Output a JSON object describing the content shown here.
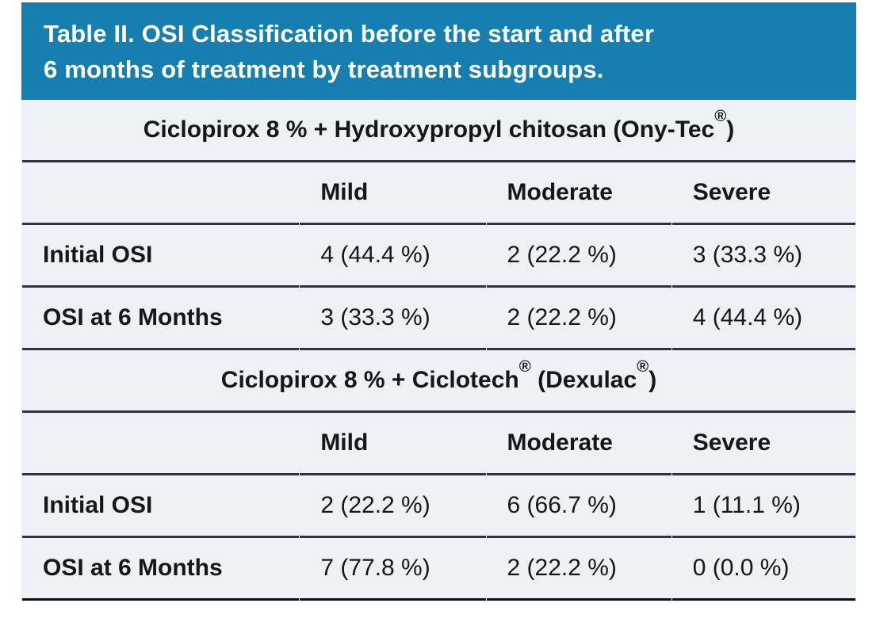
{
  "banner": {
    "title_line1": "Table II. OSI Classification before the start and after",
    "title_line2": "6 months of treatment by treatment subgroups."
  },
  "colors": {
    "banner_bg": "#177fb0",
    "banner_text": "#ffffff",
    "table_bg": "#edf1f6",
    "grid_line": "#2e343c",
    "bottom_line": "#0b0e12",
    "body_text": "#14171b"
  },
  "table": {
    "sections": [
      {
        "title_parts": [
          {
            "text": "Ciclopirox 8 % + Hydroxypropyl chitosan (Ony-Tec"
          },
          {
            "sup": "®"
          },
          {
            "text": ")"
          }
        ],
        "columns": [
          "Mild",
          "Moderate",
          "Severe"
        ],
        "rows": [
          {
            "label": "Initial OSI",
            "values": [
              "4 (44.4 %)",
              "2 (22.2 %)",
              "3 (33.3 %)"
            ]
          },
          {
            "label": "OSI at 6 Months",
            "values": [
              "3 (33.3 %)",
              "2 (22.2 %)",
              "4 (44.4 %)"
            ]
          }
        ]
      },
      {
        "title_parts": [
          {
            "text": "Ciclopirox 8 % + Ciclotech"
          },
          {
            "sup": "®"
          },
          {
            "text": " (Dexulac"
          },
          {
            "sup": "®"
          },
          {
            "text": ")"
          }
        ],
        "columns": [
          "Mild",
          "Moderate",
          "Severe"
        ],
        "rows": [
          {
            "label": "Initial OSI",
            "values": [
              "2 (22.2 %)",
              "6 (66.7 %)",
              "1 (11.1 %)"
            ]
          },
          {
            "label": "OSI at 6 Months",
            "values": [
              "7 (77.8 %)",
              "2 (22.2 %)",
              "0 (0.0 %)"
            ]
          }
        ]
      }
    ]
  },
  "chart_data": {
    "type": "table",
    "title": "Table II. OSI Classification before the start and after 6 months of treatment by treatment subgroups.",
    "sections": [
      {
        "group": "Ciclopirox 8 % + Hydroxypropyl chitosan (Ony-Tec®)",
        "columns": [
          "Mild",
          "Moderate",
          "Severe"
        ],
        "rows": [
          {
            "label": "Initial OSI",
            "counts": [
              4,
              2,
              3
            ],
            "percents": [
              44.4,
              22.2,
              33.3
            ]
          },
          {
            "label": "OSI at 6 Months",
            "counts": [
              3,
              2,
              4
            ],
            "percents": [
              33.3,
              22.2,
              44.4
            ]
          }
        ]
      },
      {
        "group": "Ciclopirox 8 % + Ciclotech® (Dexulac®)",
        "columns": [
          "Mild",
          "Moderate",
          "Severe"
        ],
        "rows": [
          {
            "label": "Initial OSI",
            "counts": [
              2,
              6,
              1
            ],
            "percents": [
              22.2,
              66.7,
              11.1
            ]
          },
          {
            "label": "OSI at 6 Months",
            "counts": [
              7,
              2,
              0
            ],
            "percents": [
              77.8,
              22.2,
              0.0
            ]
          }
        ]
      }
    ]
  }
}
